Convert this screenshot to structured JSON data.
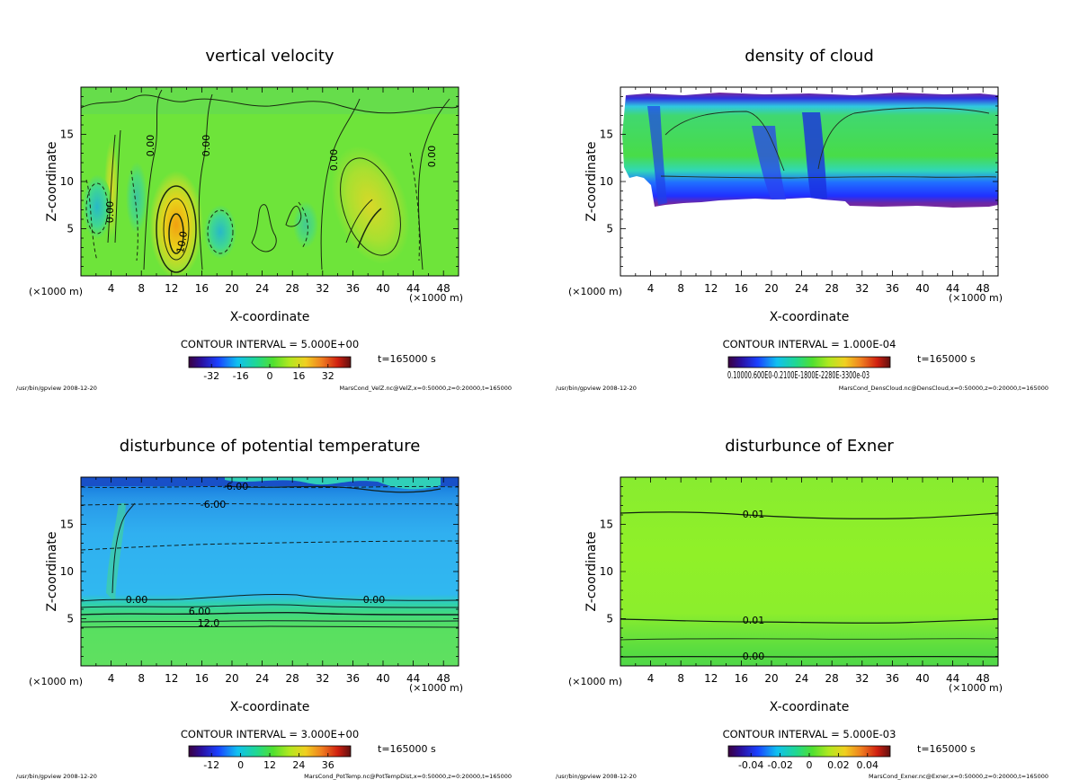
{
  "figure": {
    "footer_left": "/usr/bin/gpview  2008-12-20",
    "x_axis_title": "X-coordinate",
    "y_axis_title": "Z-coordinate",
    "x_unit_left": "(×1000 m)",
    "x_unit_right": "(×1000 m)",
    "time_label": "t=165000 s"
  },
  "chart_data": [
    {
      "type": "heatmap",
      "title": "vertical velocity",
      "xlabel": "X-coordinate",
      "ylabel": "Z-coordinate",
      "xlim": [
        0,
        50
      ],
      "ylim": [
        0,
        20
      ],
      "x_ticks": [
        4,
        8,
        12,
        16,
        20,
        24,
        28,
        32,
        36,
        40,
        44,
        48
      ],
      "y_ticks": [
        5,
        10,
        15
      ],
      "contour_interval": "CONTOUR INTERVAL = 5.000E+00",
      "contour_labels": [
        "0.00",
        "0.00",
        "0.00",
        "0.00",
        "0.00",
        "10.0",
        "0.00"
      ],
      "colorbar_ticks": [
        "-32",
        "-16",
        "0",
        "16",
        "32"
      ],
      "time": "t=165000 s",
      "source": "MarsCond_VelZ.nc@VelZ,x=0:50000,z=0:20000,t=165000",
      "colors": {
        "background": "#6ee43a",
        "positive": "#e8d21a",
        "negative": "#30c8a0",
        "contour": "#1a2a10"
      }
    },
    {
      "type": "heatmap",
      "title": "density of cloud",
      "xlabel": "X-coordinate",
      "ylabel": "Z-coordinate",
      "xlim": [
        0,
        50
      ],
      "ylim": [
        0,
        20
      ],
      "x_ticks": [
        4,
        8,
        12,
        16,
        20,
        24,
        28,
        32,
        36,
        40,
        44,
        48
      ],
      "y_ticks": [
        5,
        10,
        15
      ],
      "contour_interval": "CONTOUR INTERVAL = 1.000E-04",
      "colorbar_ticks_text": "0.10000.600E0-0.2100E-1800E-2280E-3300e-03",
      "time": "t=165000 s",
      "source": "MarsCond_DensCloud.nc@DensCloud,x=0:50000,z=0:20000,t=165000",
      "colors": {
        "cloud_top": "#7a2aa0",
        "cloud_core": "#46d84a",
        "cloud_edge": "#1a3aff"
      }
    },
    {
      "type": "heatmap",
      "title": "disturbunce of potential temperature",
      "xlabel": "X-coordinate",
      "ylabel": "Z-coordinate",
      "xlim": [
        0,
        50
      ],
      "ylim": [
        0,
        20
      ],
      "x_ticks": [
        4,
        8,
        12,
        16,
        20,
        24,
        28,
        32,
        36,
        40,
        44,
        48
      ],
      "y_ticks": [
        5,
        10,
        15
      ],
      "contour_interval": "CONTOUR INTERVAL = 3.000E+00",
      "contour_labels": [
        "-6.00",
        "-6.00",
        "0.00",
        "0.00",
        "6.00",
        "12.0"
      ],
      "colorbar_ticks": [
        "-12",
        "0",
        "12",
        "24",
        "36"
      ],
      "time": "t=165000 s",
      "source": "MarsCond_PotTemp.nc@PotTempDist,x=0:50000,z=0:20000,t=165000",
      "colors": {
        "upper": "#2aa8e8",
        "lower": "#58e060",
        "top": "#1858d0"
      }
    },
    {
      "type": "heatmap",
      "title": "disturbunce of Exner",
      "xlabel": "X-coordinate",
      "ylabel": "Z-coordinate",
      "xlim": [
        0,
        50
      ],
      "ylim": [
        0,
        20
      ],
      "x_ticks": [
        4,
        8,
        12,
        16,
        20,
        24,
        28,
        32,
        36,
        40,
        44,
        48
      ],
      "y_ticks": [
        5,
        10,
        15
      ],
      "contour_interval": "CONTOUR INTERVAL = 5.000E-03",
      "contour_labels": [
        "0.01",
        "0.01",
        "0.00"
      ],
      "colorbar_ticks": [
        "-0.04",
        "-0.02",
        "0",
        "0.02",
        "0.04"
      ],
      "time": "t=165000 s",
      "source": "MarsCond_Exner.nc@Exner,x=0:50000,z=0:20000,t=165000",
      "colors": {
        "field": "#8cf028",
        "lower": "#5ee03a"
      }
    }
  ]
}
